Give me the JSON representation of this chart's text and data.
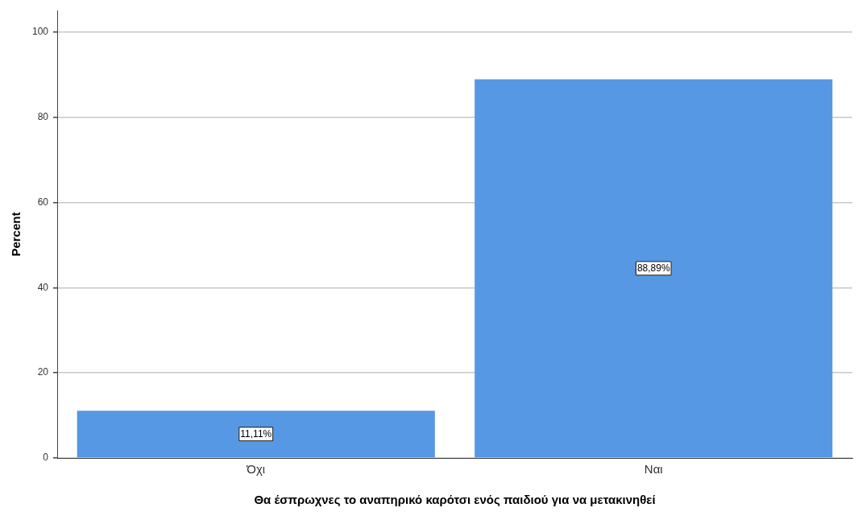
{
  "chart_data": {
    "type": "bar",
    "xlabel": "Θα έσπρωχνες το αναπηρικό καρότσι ενός παιδιού για να μετακινηθεί",
    "ylabel": "Percent",
    "categories": [
      "Όχι",
      "Ναι"
    ],
    "values": [
      11.11,
      88.89
    ],
    "value_labels": [
      "11,11%",
      "88,89%"
    ],
    "color": "#5698e3",
    "ylim": [
      0,
      105
    ],
    "yticks": [
      0,
      20,
      40,
      60,
      80,
      100
    ],
    "grid": "y",
    "legend": false
  }
}
